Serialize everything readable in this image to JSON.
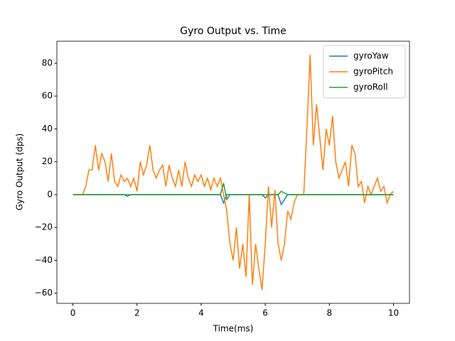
{
  "chart_data": {
    "type": "line",
    "title": "Gyro Output vs. Time",
    "x_label": "Time(ms)",
    "y_label": "Gyro Output (dps)",
    "x": [
      0,
      0.1,
      0.2,
      0.3,
      0.4,
      0.5,
      0.6,
      0.7,
      0.8,
      0.9,
      1,
      1.1,
      1.2,
      1.3,
      1.4,
      1.5,
      1.6,
      1.7,
      1.8,
      1.9,
      2,
      2.1,
      2.2,
      2.3,
      2.4,
      2.5,
      2.6,
      2.7,
      2.8,
      2.9,
      3,
      3.1,
      3.2,
      3.3,
      3.4,
      3.5,
      3.6,
      3.7,
      3.8,
      3.9,
      4,
      4.1,
      4.2,
      4.3,
      4.4,
      4.5,
      4.6,
      4.7,
      4.8,
      4.9,
      5,
      5.1,
      5.2,
      5.3,
      5.4,
      5.5,
      5.6,
      5.7,
      5.8,
      5.9,
      6,
      6.1,
      6.2,
      6.3,
      6.4,
      6.5,
      6.6,
      6.7,
      6.8,
      6.9,
      7,
      7.1,
      7.2,
      7.3,
      7.4,
      7.5,
      7.6,
      7.7,
      7.8,
      7.9,
      8,
      8.1,
      8.2,
      8.3,
      8.4,
      8.5,
      8.6,
      8.7,
      8.8,
      8.9,
      9,
      9.1,
      9.2,
      9.3,
      9.4,
      9.5,
      9.6,
      9.7,
      9.8,
      9.9,
      10
    ],
    "series": [
      {
        "name": "gyroYaw",
        "color": "#1f77b4",
        "values": [
          0,
          0,
          0,
          0,
          0,
          0,
          0,
          0,
          0,
          0,
          0,
          0,
          0,
          0,
          0,
          0,
          0,
          -1,
          0,
          0,
          0,
          0,
          0,
          0,
          0,
          0,
          0,
          0,
          0,
          0,
          0,
          0,
          0,
          0,
          0,
          0,
          0,
          0,
          0,
          0,
          0,
          0,
          0,
          0,
          0,
          0,
          0,
          -5,
          0,
          0,
          0,
          0,
          0,
          0,
          0,
          0,
          0,
          0,
          0,
          0,
          -2,
          0,
          0,
          0,
          0,
          -6,
          -3,
          0,
          0,
          0,
          0,
          0,
          0,
          0,
          0,
          0,
          0,
          0,
          0,
          0,
          0,
          0,
          0,
          0,
          0,
          0,
          0,
          0,
          0,
          0,
          0,
          0,
          0,
          0,
          0,
          0,
          0,
          0,
          0,
          0,
          0
        ]
      },
      {
        "name": "gyroPitch",
        "color": "#ff7f0e",
        "values": [
          0,
          0,
          0,
          0,
          5,
          15,
          15,
          30,
          15,
          25,
          20,
          8,
          25,
          8,
          5,
          12,
          8,
          10,
          5,
          10,
          2,
          20,
          12,
          18,
          30,
          15,
          10,
          15,
          18,
          5,
          18,
          10,
          5,
          15,
          5,
          20,
          10,
          5,
          12,
          8,
          12,
          5,
          10,
          3,
          10,
          5,
          10,
          0,
          -10,
          -30,
          -40,
          -20,
          -45,
          -30,
          -50,
          0,
          -55,
          -30,
          -45,
          -58,
          -30,
          5,
          -20,
          3,
          -30,
          -40,
          -30,
          -10,
          -15,
          -5,
          0,
          0,
          0,
          40,
          85,
          30,
          55,
          35,
          15,
          40,
          30,
          48,
          20,
          10,
          15,
          20,
          5,
          30,
          25,
          5,
          8,
          -5,
          5,
          0,
          5,
          10,
          2,
          5,
          -5,
          0,
          2
        ]
      },
      {
        "name": "gyroRoll",
        "color": "#2ca02c",
        "values": [
          0,
          0,
          0,
          0,
          0,
          0,
          0,
          0,
          0,
          0,
          0,
          0,
          0,
          0,
          0,
          0,
          0,
          0,
          0,
          0,
          0,
          0,
          0,
          0,
          0,
          0,
          0,
          0,
          0,
          0,
          0,
          0,
          0,
          0,
          0,
          0,
          0,
          0,
          0,
          0,
          0,
          0,
          0,
          0,
          0,
          0,
          0,
          7,
          -3,
          0,
          0,
          0,
          0,
          0,
          0,
          0,
          0,
          0,
          0,
          0,
          0,
          0,
          0,
          0,
          0,
          2,
          1,
          0,
          0,
          0,
          0,
          0,
          0,
          0,
          0,
          0,
          0,
          0,
          0,
          0,
          0,
          0,
          0,
          0,
          0,
          0,
          0,
          0,
          0,
          0,
          0,
          0,
          0,
          0,
          0,
          0,
          0,
          0,
          0,
          0,
          0
        ]
      }
    ],
    "xlim": [
      -0.5,
      10.5
    ],
    "ylim": [
      -66.2,
      93.4
    ],
    "xticks": [
      0,
      2,
      4,
      6,
      8,
      10
    ],
    "yticks": [
      {
        "value": -60,
        "label": "−60"
      },
      {
        "value": -40,
        "label": "−40"
      },
      {
        "value": -20,
        "label": "−20"
      },
      0,
      20,
      40,
      60,
      80
    ],
    "legend": "upper right"
  }
}
